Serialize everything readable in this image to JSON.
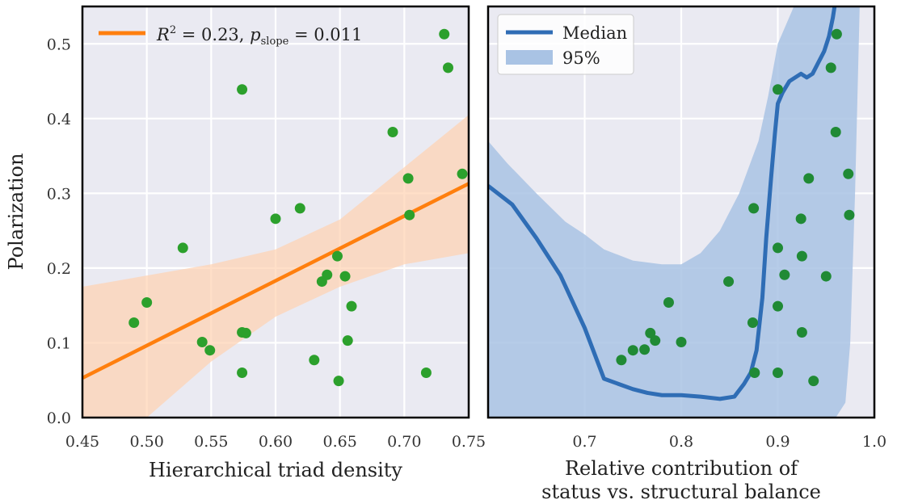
{
  "chart_data": [
    {
      "type": "scatter",
      "title": "",
      "xlabel": "Hierarchical triad density",
      "ylabel": "Polarization",
      "xlim": [
        0.45,
        0.75
      ],
      "ylim": [
        0.0,
        0.55
      ],
      "x_ticks": [
        "0.45",
        "0.50",
        "0.55",
        "0.60",
        "0.65",
        "0.70",
        "0.75"
      ],
      "y_ticks": [
        "0.0",
        "0.1",
        "0.2",
        "0.3",
        "0.4",
        "0.5"
      ],
      "grid": true,
      "legend_position": "top-left",
      "fit": {
        "legend_parts": {
          "r": "R",
          "sup": "2",
          "eq1": " = 0.23, ",
          "p": "p",
          "sub": "slope",
          "eq2": " = 0.011"
        },
        "line": {
          "x": [
            0.45,
            0.75
          ],
          "y": [
            0.053,
            0.313
          ]
        },
        "band_upper": {
          "x": [
            0.45,
            0.5,
            0.55,
            0.6,
            0.65,
            0.7,
            0.75
          ],
          "y": [
            0.175,
            0.19,
            0.205,
            0.225,
            0.265,
            0.335,
            0.405
          ]
        },
        "band_lower": {
          "x": [
            0.45,
            0.5,
            0.55,
            0.6,
            0.65,
            0.7,
            0.75
          ],
          "y": [
            -0.08,
            0.0,
            0.075,
            0.135,
            0.175,
            0.205,
            0.22
          ]
        }
      },
      "points": {
        "x": [
          0.49,
          0.5,
          0.528,
          0.543,
          0.549,
          0.574,
          0.574,
          0.574,
          0.577,
          0.6,
          0.619,
          0.63,
          0.636,
          0.64,
          0.648,
          0.649,
          0.654,
          0.656,
          0.659,
          0.691,
          0.703,
          0.704,
          0.717,
          0.731,
          0.734,
          0.745
        ],
        "y": [
          0.127,
          0.154,
          0.227,
          0.101,
          0.09,
          0.439,
          0.114,
          0.06,
          0.113,
          0.266,
          0.28,
          0.077,
          0.182,
          0.191,
          0.216,
          0.049,
          0.189,
          0.103,
          0.149,
          0.382,
          0.32,
          0.271,
          0.06,
          0.513,
          0.468,
          0.326
        ]
      }
    },
    {
      "type": "line",
      "title": "",
      "xlabel_lines": [
        "Relative contribution of",
        "status vs. structural balance"
      ],
      "ylabel": "",
      "xlim": [
        0.6,
        1.0
      ],
      "ylim": [
        0.0,
        0.55
      ],
      "x_ticks": [
        "0.7",
        "0.8",
        "0.9",
        "1.0"
      ],
      "grid": true,
      "legend_position": "top-left",
      "series": [
        {
          "name": "Median",
          "x": [
            0.6,
            0.625,
            0.65,
            0.675,
            0.7,
            0.72,
            0.735,
            0.75,
            0.765,
            0.78,
            0.8,
            0.82,
            0.84,
            0.855,
            0.865,
            0.872,
            0.878,
            0.884,
            0.888,
            0.893,
            0.897,
            0.9,
            0.905,
            0.912,
            0.918,
            0.924,
            0.93,
            0.936,
            0.942,
            0.948,
            0.953,
            0.957,
            0.96
          ],
          "y": [
            0.31,
            0.285,
            0.24,
            0.19,
            0.12,
            0.052,
            0.045,
            0.038,
            0.033,
            0.03,
            0.03,
            0.028,
            0.025,
            0.028,
            0.045,
            0.06,
            0.09,
            0.16,
            0.24,
            0.32,
            0.38,
            0.42,
            0.435,
            0.45,
            0.455,
            0.46,
            0.455,
            0.46,
            0.475,
            0.49,
            0.51,
            0.535,
            0.56
          ]
        },
        {
          "name": "95%",
          "upper": {
            "x": [
              0.6,
              0.62,
              0.65,
              0.68,
              0.7,
              0.72,
              0.75,
              0.78,
              0.8,
              0.82,
              0.84,
              0.86,
              0.88,
              0.89,
              0.9,
              0.92,
              0.94,
              0.96,
              0.97,
              0.975,
              0.98,
              0.985
            ],
            "y": [
              0.37,
              0.34,
              0.3,
              0.262,
              0.245,
              0.225,
              0.21,
              0.205,
              0.205,
              0.22,
              0.25,
              0.3,
              0.37,
              0.43,
              0.5,
              0.56,
              0.56,
              0.56,
              0.56,
              0.56,
              0.56,
              0.56
            ]
          },
          "lower": {
            "x": [
              0.6,
              0.62,
              0.65,
              0.7,
              0.75,
              0.8,
              0.85,
              0.88,
              0.9,
              0.92,
              0.94,
              0.96,
              0.97,
              0.975,
              0.98,
              0.985
            ],
            "y": [
              0.0,
              0.0,
              0.0,
              0.0,
              0.0,
              0.0,
              0.0,
              0.0,
              0.0,
              0.0,
              0.0,
              0.0,
              0.02,
              0.1,
              0.3,
              0.56
            ]
          }
        }
      ],
      "points": {
        "x": [
          0.738,
          0.75,
          0.762,
          0.768,
          0.773,
          0.787,
          0.8,
          0.849,
          0.874,
          0.875,
          0.876,
          0.9,
          0.9,
          0.9,
          0.9,
          0.907,
          0.924,
          0.925,
          0.925,
          0.932,
          0.937,
          0.95,
          0.955,
          0.96,
          0.961,
          0.973,
          0.974
        ],
        "y": [
          0.077,
          0.09,
          0.091,
          0.113,
          0.103,
          0.154,
          0.101,
          0.182,
          0.127,
          0.28,
          0.06,
          0.439,
          0.227,
          0.149,
          0.06,
          0.191,
          0.266,
          0.216,
          0.114,
          0.32,
          0.049,
          0.189,
          0.468,
          0.382,
          0.513,
          0.326,
          0.271
        ]
      }
    }
  ],
  "colors": {
    "panel_bg": "#eaeaf2",
    "grid": "#ffffff",
    "frame": "#000000",
    "fit_line": "#ff7f0e",
    "fit_band": "#ffd2b0",
    "median_line": "#2f6db5",
    "ci_band": "#a9c3e4",
    "points": "#2ca02c",
    "points_right": "#208a35"
  }
}
